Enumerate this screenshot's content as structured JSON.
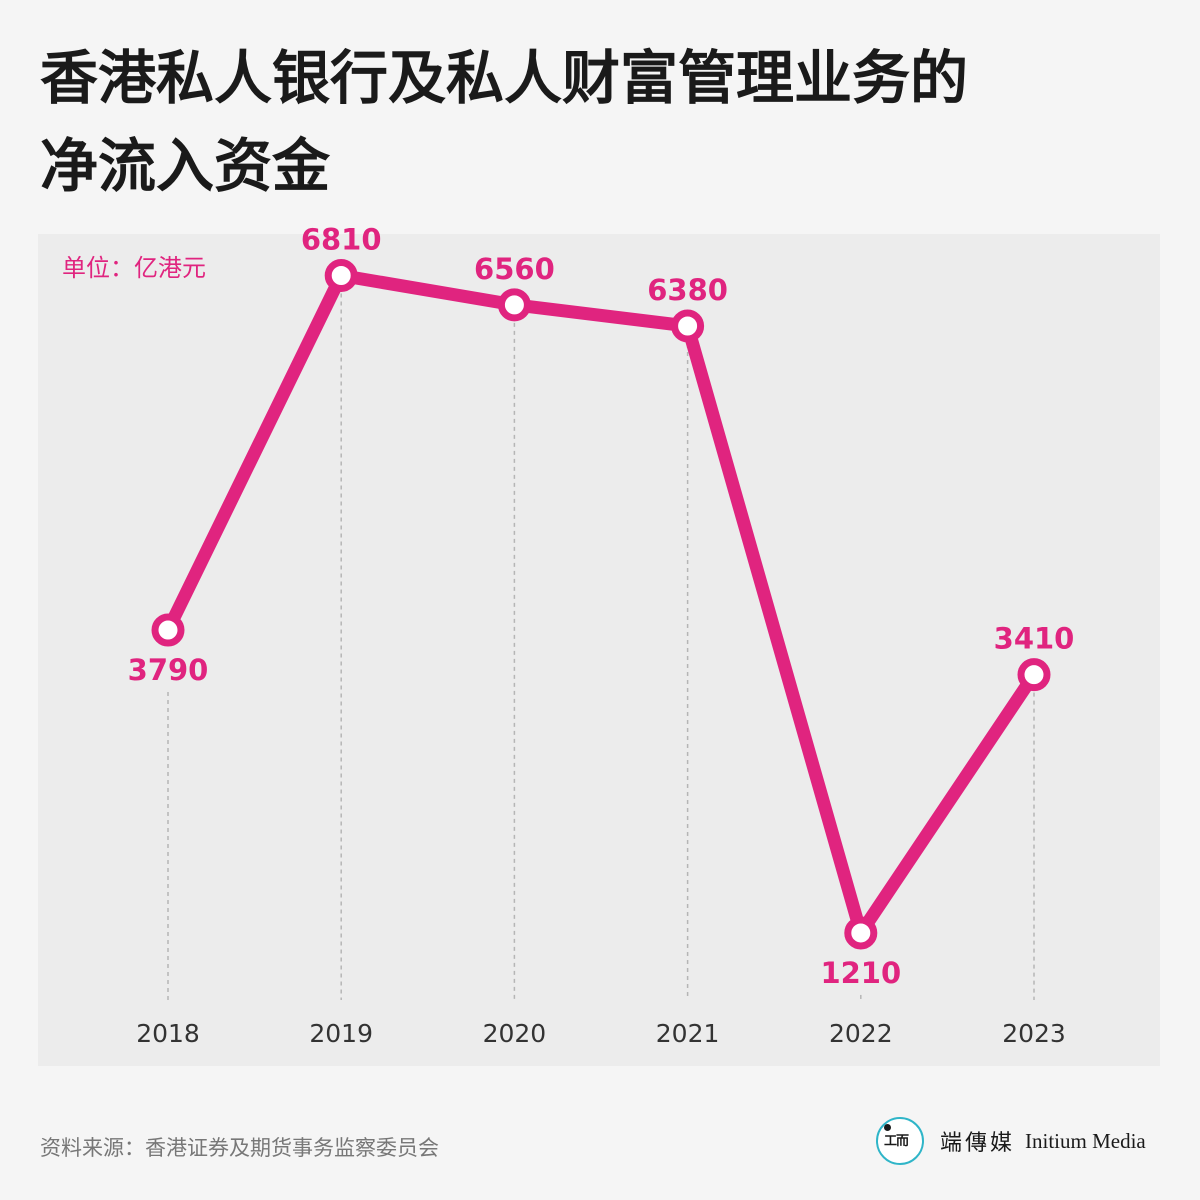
{
  "title": "香港私人银行及私人财富管理业务的净流入资金",
  "unit_label": "单位：亿港元",
  "source": "资料来源：香港证券及期货事务监察委员会",
  "brand": {
    "chinese": "端傳媒",
    "english": "Initium Media",
    "logo_icon": "initium-logo-icon",
    "logo_text": "𝔈𝔗𝔖"
  },
  "colors": {
    "accent": "#e0247f",
    "background": "#f5f5f5",
    "panel": "#ececec",
    "logo_ring": "#2fb5c8"
  },
  "chart_data": {
    "type": "line",
    "title": "香港私人银行及私人财富管理业务的净流入资金",
    "unit": "亿港元",
    "x": [
      "2018",
      "2019",
      "2020",
      "2021",
      "2022",
      "2023"
    ],
    "values": [
      3790,
      6810,
      6560,
      6380,
      1210,
      3410
    ],
    "data_labels": [
      "3790",
      "6810",
      "6560",
      "6380",
      "1210",
      "3410"
    ],
    "label_positions": [
      "below",
      "above",
      "above",
      "above",
      "below",
      "above"
    ],
    "grid": "vertical dashed drop lines",
    "legend": "none",
    "line_color": "#e0247f"
  }
}
